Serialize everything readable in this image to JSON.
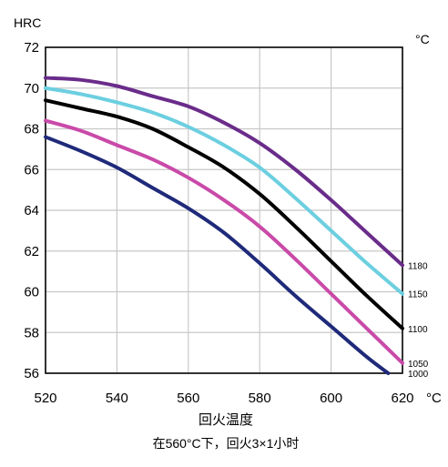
{
  "chart_data": {
    "type": "line",
    "ylabel": "HRC",
    "series_unit": "°C",
    "x_unit": "°C",
    "xlabel": "回火温度",
    "note": "在560°C下，回火3×1小时",
    "xlim": [
      520,
      620
    ],
    "ylim": [
      56,
      72
    ],
    "x_ticks": [
      "520",
      "540",
      "560",
      "580",
      "600",
      "620"
    ],
    "y_ticks": [
      "56",
      "58",
      "60",
      "62",
      "64",
      "66",
      "68",
      "70",
      "72"
    ],
    "grid": true,
    "series": [
      {
        "name": "1180",
        "color": "#6a2c8a",
        "points": [
          [
            520,
            70.5
          ],
          [
            530,
            70.4
          ],
          [
            540,
            70.1
          ],
          [
            550,
            69.6
          ],
          [
            560,
            69.1
          ],
          [
            570,
            68.3
          ],
          [
            580,
            67.3
          ],
          [
            590,
            66.0
          ],
          [
            600,
            64.5
          ],
          [
            610,
            62.9
          ],
          [
            620,
            61.3
          ]
        ]
      },
      {
        "name": "1150",
        "color": "#6ccfe0",
        "points": [
          [
            520,
            70.0
          ],
          [
            530,
            69.7
          ],
          [
            540,
            69.3
          ],
          [
            550,
            68.8
          ],
          [
            560,
            68.1
          ],
          [
            570,
            67.2
          ],
          [
            580,
            66.1
          ],
          [
            590,
            64.6
          ],
          [
            600,
            63.0
          ],
          [
            610,
            61.4
          ],
          [
            620,
            59.9
          ]
        ]
      },
      {
        "name": "1100",
        "color": "#000000",
        "points": [
          [
            520,
            69.4
          ],
          [
            530,
            69.0
          ],
          [
            540,
            68.6
          ],
          [
            550,
            68.0
          ],
          [
            560,
            67.1
          ],
          [
            570,
            66.1
          ],
          [
            580,
            64.8
          ],
          [
            590,
            63.2
          ],
          [
            600,
            61.5
          ],
          [
            610,
            59.8
          ],
          [
            620,
            58.2
          ]
        ]
      },
      {
        "name": "1050",
        "color": "#c94aa8",
        "points": [
          [
            520,
            68.4
          ],
          [
            530,
            67.9
          ],
          [
            540,
            67.2
          ],
          [
            550,
            66.5
          ],
          [
            560,
            65.6
          ],
          [
            570,
            64.5
          ],
          [
            580,
            63.2
          ],
          [
            590,
            61.6
          ],
          [
            600,
            59.9
          ],
          [
            610,
            58.2
          ],
          [
            620,
            56.5
          ]
        ]
      },
      {
        "name": "1000",
        "color": "#1f2a7a",
        "points": [
          [
            520,
            67.6
          ],
          [
            530,
            66.9
          ],
          [
            540,
            66.1
          ],
          [
            550,
            65.1
          ],
          [
            560,
            64.1
          ],
          [
            570,
            62.9
          ],
          [
            580,
            61.4
          ],
          [
            590,
            59.8
          ],
          [
            600,
            58.3
          ],
          [
            610,
            56.8
          ],
          [
            616,
            56.0
          ]
        ]
      }
    ]
  }
}
